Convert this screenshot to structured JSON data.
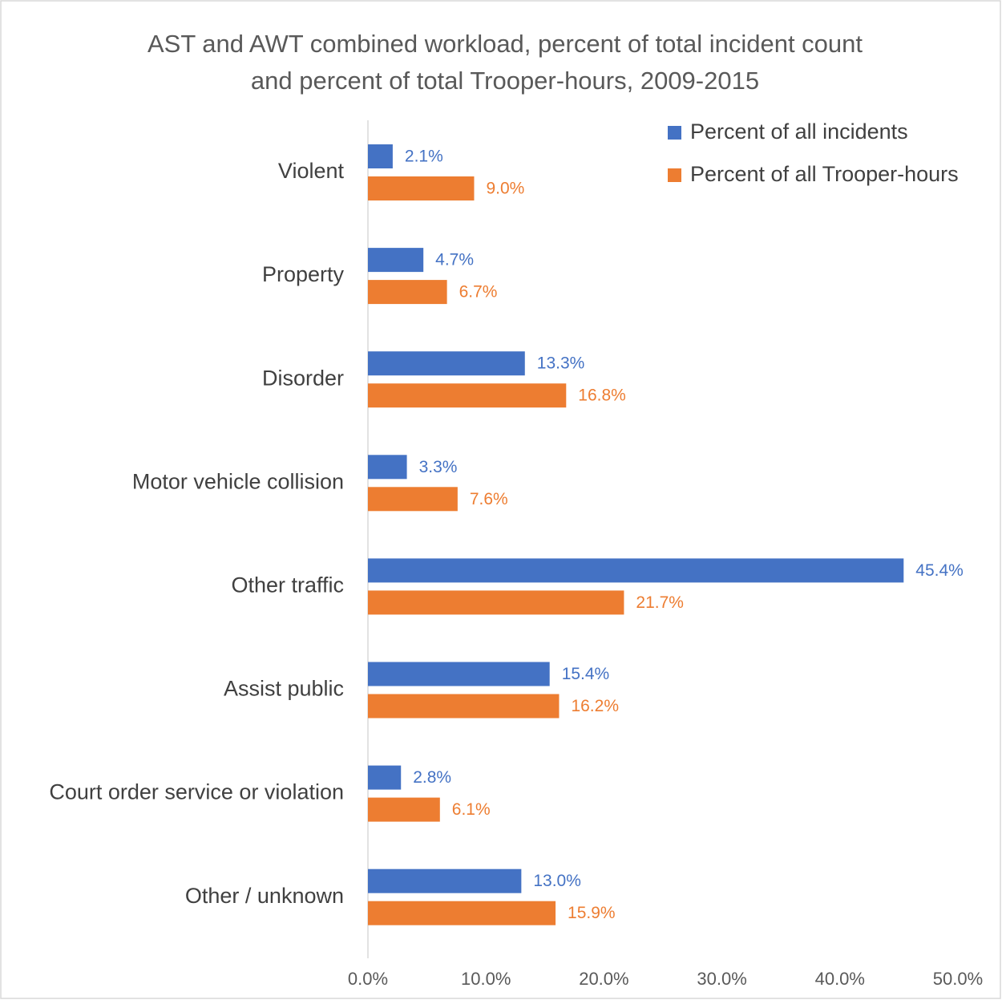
{
  "chart_data": {
    "type": "bar",
    "orientation": "horizontal",
    "title": "AST and AWT combined workload, percent of total incident count and percent of total Trooper-hours, 2009-2015",
    "categories": [
      "Violent",
      "Property",
      "Disorder",
      "Motor vehicle collision",
      "Other traffic",
      "Assist public",
      "Court order service or violation",
      "Other / unknown"
    ],
    "series": [
      {
        "name": "Percent of all incidents",
        "color": "#4472c4",
        "values": [
          2.1,
          4.7,
          13.3,
          3.3,
          45.4,
          15.4,
          2.8,
          13.0
        ],
        "value_labels": [
          "2.1%",
          "4.7%",
          "13.3%",
          "3.3%",
          "45.4%",
          "15.4%",
          "2.8%",
          "13.0%"
        ]
      },
      {
        "name": "Percent of all Trooper-hours",
        "color": "#ed7d31",
        "values": [
          9.0,
          6.7,
          16.8,
          7.6,
          21.7,
          16.2,
          6.1,
          15.9
        ],
        "value_labels": [
          "9.0%",
          "6.7%",
          "16.8%",
          "7.6%",
          "21.7%",
          "16.2%",
          "6.1%",
          "15.9%"
        ]
      }
    ],
    "xlim": [
      0,
      50
    ],
    "xticks": [
      {
        "value": 0,
        "label": "0.0%"
      },
      {
        "value": 10,
        "label": "10.0%"
      },
      {
        "value": 20,
        "label": "20.0%"
      },
      {
        "value": 30,
        "label": "30.0%"
      },
      {
        "value": 40,
        "label": "40.0%"
      },
      {
        "value": 50,
        "label": "50.0%"
      }
    ],
    "grid": false,
    "legend": "top-right"
  }
}
